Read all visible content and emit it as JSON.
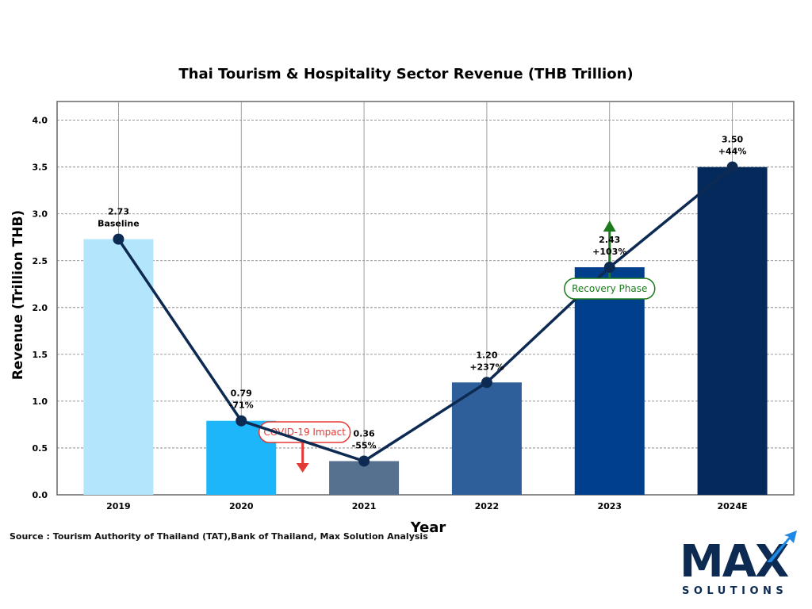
{
  "chart_data": {
    "type": "bar",
    "title": "Thai Tourism & Hospitality Sector Revenue (THB Trillion)",
    "xlabel": "Year",
    "ylabel": "Revenue (Trillion THB)",
    "categories": [
      "2019",
      "2020",
      "2021",
      "2022",
      "2023",
      "2024E"
    ],
    "values": [
      2.73,
      0.79,
      0.36,
      1.2,
      2.43,
      3.5
    ],
    "value_labels": [
      "2.73",
      "0.79",
      "0.36",
      "1.20",
      "2.43",
      "3.50"
    ],
    "change_labels": [
      "Baseline",
      "-71%",
      "-55%",
      "+237%",
      "+103%",
      "+44%"
    ],
    "bar_colors": [
      "#b3e5fc",
      "#1eb6fb",
      "#56708f",
      "#2f5f9b",
      "#003f8c",
      "#032a5a"
    ],
    "line_color": "#0d2a52",
    "ylim": [
      0,
      4.2
    ],
    "yticks": [
      "0.0",
      "0.5",
      "1.0",
      "1.5",
      "2.0",
      "2.5",
      "3.0",
      "3.5",
      "4.0"
    ],
    "grid": true,
    "annotations": [
      {
        "text": "COVID-19 Impact",
        "color": "#e53935",
        "arrow": "down",
        "near": "2020-2021"
      },
      {
        "text": "Recovery Phase",
        "color": "#1b7a1b",
        "arrow": "up",
        "near": "2023"
      }
    ]
  },
  "source": "Source : Tourism Authority of Thailand (TAT),Bank of Thailand, Max Solution Analysis",
  "logo": {
    "word": "MAX",
    "subword": "SOLUTIONS",
    "color": "#0d2a52",
    "accent": "#1e88e5"
  }
}
